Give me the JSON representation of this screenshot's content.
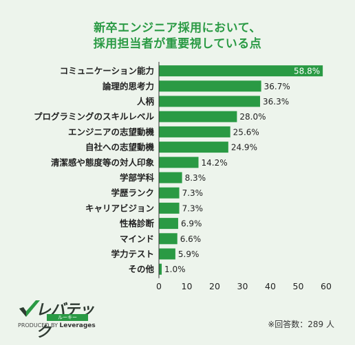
{
  "title_line1": "新卒エンジニア採用において、",
  "title_line2": "採用担当者が重要視している点",
  "note": "※回答数：289 人",
  "logo": {
    "main": "レバテック",
    "sub": "ルーキー",
    "produced_by": "PRODUCED BY",
    "company": "Leverages"
  },
  "colors": {
    "bar": "#2a9a44",
    "title": "#2a9a44",
    "background": "#edf4ec"
  },
  "chart_data": {
    "type": "bar",
    "orientation": "horizontal",
    "categories": [
      "コミュニケーション能力",
      "論理的思考力",
      "人柄",
      "プログラミングのスキルレベル",
      "エンジニアの志望動機",
      "自社への志望動機",
      "清潔感や態度等の対人印象",
      "学部学科",
      "学歴ランク",
      "キャリアビジョン",
      "性格診断",
      "マインド",
      "学力テスト",
      "その他"
    ],
    "values": [
      58.8,
      36.7,
      36.3,
      28.0,
      25.6,
      24.9,
      14.2,
      8.3,
      7.3,
      7.3,
      6.9,
      6.6,
      5.9,
      1.0
    ],
    "value_labels": [
      "58.8%",
      "36.7%",
      "36.3%",
      "28.0%",
      "25.6%",
      "24.9%",
      "14.2%",
      "8.3%",
      "7.3%",
      "7.3%",
      "6.9%",
      "6.6%",
      "5.9%",
      "1.0%"
    ],
    "xlim": [
      0,
      60
    ],
    "xticks": [
      "0",
      "10",
      "20",
      "30",
      "40",
      "50",
      "60"
    ],
    "grid": false
  }
}
